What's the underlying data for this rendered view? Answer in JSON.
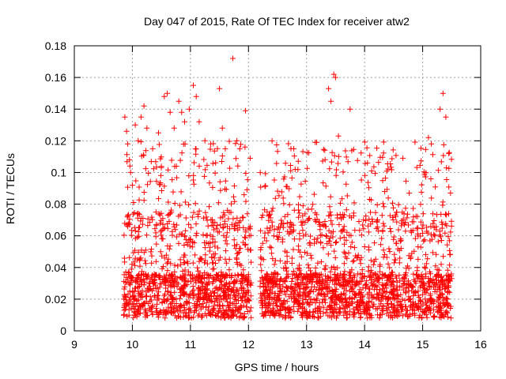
{
  "chart_data": {
    "type": "scatter",
    "title": "Day 047 of 2015, Rate Of TEC Index for receiver atw2",
    "xlabel": "GPS time / hours",
    "ylabel": "ROTI / TECUs",
    "xlim": [
      9,
      16
    ],
    "ylim": [
      0,
      0.18
    ],
    "xticks": [
      9,
      10,
      11,
      12,
      13,
      14,
      15,
      16
    ],
    "yticks": [
      0,
      0.02,
      0.04,
      0.06,
      0.08,
      0.1,
      0.12,
      0.14,
      0.16,
      0.18
    ],
    "xtick_labels": [
      "9",
      "10",
      "11",
      "12",
      "13",
      "14",
      "15",
      "16"
    ],
    "ytick_labels": [
      "0",
      "0.02",
      "0.04",
      "0.06",
      "0.08",
      "0.1",
      "0.12",
      "0.14",
      "0.16",
      "0.18"
    ],
    "grid": true,
    "marker": "+",
    "color": "#ff0000",
    "series": [
      {
        "name": "ROTI",
        "segments": [
          {
            "x_start": 9.85,
            "x_end": 12.05
          },
          {
            "x_start": 12.2,
            "x_end": 15.5
          }
        ],
        "points": [
          [
            9.87,
            0.135
          ],
          [
            9.9,
            0.126
          ],
          [
            9.92,
            0.118
          ],
          [
            9.95,
            0.108
          ],
          [
            9.97,
            0.1
          ],
          [
            10.0,
            0.092
          ],
          [
            10.05,
            0.13
          ],
          [
            10.1,
            0.12
          ],
          [
            10.15,
            0.135
          ],
          [
            10.2,
            0.142
          ],
          [
            10.25,
            0.128
          ],
          [
            10.35,
            0.115
          ],
          [
            10.45,
            0.125
          ],
          [
            10.55,
            0.148
          ],
          [
            10.6,
            0.15
          ],
          [
            10.65,
            0.138
          ],
          [
            10.72,
            0.128
          ],
          [
            10.8,
            0.145
          ],
          [
            10.85,
            0.138
          ],
          [
            10.9,
            0.132
          ],
          [
            10.98,
            0.14
          ],
          [
            11.05,
            0.155
          ],
          [
            11.1,
            0.148
          ],
          [
            11.15,
            0.132
          ],
          [
            11.25,
            0.12
          ],
          [
            11.35,
            0.118
          ],
          [
            11.5,
            0.153
          ],
          [
            11.55,
            0.128
          ],
          [
            11.6,
            0.115
          ],
          [
            11.73,
            0.172
          ],
          [
            11.8,
            0.12
          ],
          [
            11.85,
            0.115
          ],
          [
            11.95,
            0.139
          ],
          [
            13.38,
            0.153
          ],
          [
            13.42,
            0.145
          ],
          [
            13.47,
            0.162
          ],
          [
            13.5,
            0.16
          ],
          [
            13.55,
            0.123
          ],
          [
            13.75,
            0.14
          ],
          [
            14.05,
            0.106
          ],
          [
            15.1,
            0.122
          ],
          [
            15.15,
            0.118
          ],
          [
            15.3,
            0.14
          ],
          [
            15.35,
            0.15
          ],
          [
            15.4,
            0.135
          ],
          [
            15.45,
            0.112
          ],
          [
            15.48,
            0.087
          ]
        ]
      }
    ]
  }
}
